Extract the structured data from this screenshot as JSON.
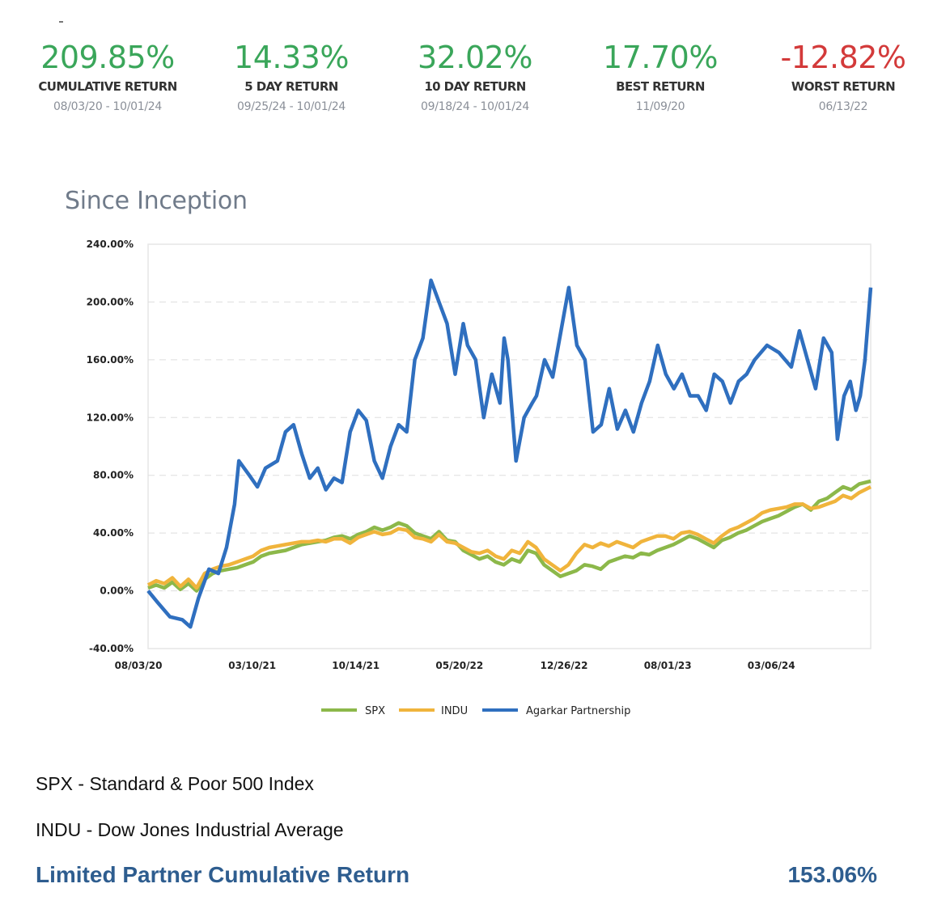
{
  "stats": [
    {
      "value": "209.85%",
      "label": "CUMULATIVE RETURN",
      "date": "08/03/20 - 10/01/24",
      "tone": "pos"
    },
    {
      "value": "14.33%",
      "label": "5 DAY RETURN",
      "date": "09/25/24 - 10/01/24",
      "tone": "pos"
    },
    {
      "value": "32.02%",
      "label": "10 DAY RETURN",
      "date": "09/18/24 - 10/01/24",
      "tone": "pos"
    },
    {
      "value": "17.70%",
      "label": "BEST RETURN",
      "date": "11/09/20",
      "tone": "pos"
    },
    {
      "value": "-12.82%",
      "label": "WORST RETURN",
      "date": "06/13/22",
      "tone": "neg"
    }
  ],
  "colors": {
    "positive": "#3aa65a",
    "negative": "#d33a3a",
    "spx": "#8cb84a",
    "indu": "#f0b43c",
    "agarkar": "#2f6fbf",
    "lp": "#2e5d8f"
  },
  "section_title": "Since Inception",
  "chart_data": {
    "type": "line",
    "title": "Since Inception",
    "xlabel": "",
    "ylabel": "",
    "x_unit": "days since 08/03/20",
    "xlim": [
      0,
      1520
    ],
    "ylim": [
      -40,
      240
    ],
    "yticks": [
      -40,
      0,
      40,
      80,
      120,
      160,
      200,
      240
    ],
    "ytick_labels": [
      "-40.00%",
      "0.00%",
      "40.00%",
      "80.00%",
      "120.00%",
      "160.00%",
      "200.00%",
      "240.00%"
    ],
    "xticks": [
      0,
      219,
      437,
      655,
      875,
      1093,
      1311
    ],
    "xtick_labels": [
      "08/03/20",
      "03/10/21",
      "10/14/21",
      "05/20/22",
      "12/26/22",
      "08/01/23",
      "03/06/24"
    ],
    "grid": true,
    "legend_position": "bottom",
    "series": [
      {
        "name": "SPX",
        "color": "#8cb84a",
        "x": [
          0,
          17,
          34,
          51,
          68,
          85,
          102,
          119,
          136,
          153,
          170,
          187,
          204,
          221,
          238,
          255,
          272,
          289,
          306,
          323,
          340,
          357,
          374,
          391,
          408,
          425,
          442,
          459,
          476,
          493,
          510,
          527,
          544,
          561,
          578,
          595,
          612,
          629,
          646,
          663,
          680,
          697,
          714,
          731,
          748,
          765,
          782,
          799,
          816,
          833,
          850,
          867,
          884,
          901,
          918,
          935,
          952,
          969,
          986,
          1003,
          1020,
          1037,
          1054,
          1071,
          1088,
          1105,
          1122,
          1139,
          1156,
          1173,
          1190,
          1207,
          1224,
          1241,
          1258,
          1275,
          1292,
          1309,
          1326,
          1343,
          1360,
          1377,
          1394,
          1411,
          1428,
          1445,
          1462,
          1479,
          1496,
          1520
        ],
        "values": [
          2,
          4,
          2,
          6,
          1,
          5,
          0,
          8,
          12,
          14,
          15,
          16,
          18,
          20,
          24,
          26,
          27,
          28,
          30,
          32,
          33,
          34,
          35,
          37,
          38,
          36,
          39,
          41,
          44,
          42,
          44,
          47,
          45,
          40,
          38,
          36,
          41,
          35,
          34,
          28,
          25,
          22,
          24,
          20,
          18,
          22,
          20,
          28,
          26,
          18,
          14,
          10,
          12,
          14,
          18,
          17,
          15,
          20,
          22,
          24,
          23,
          26,
          25,
          28,
          30,
          32,
          35,
          38,
          36,
          33,
          30,
          35,
          37,
          40,
          42,
          45,
          48,
          50,
          52,
          55,
          58,
          60,
          56,
          62,
          64,
          68,
          72,
          70,
          74,
          76
        ]
      },
      {
        "name": "INDU",
        "color": "#f0b43c",
        "x": [
          0,
          17,
          34,
          51,
          68,
          85,
          102,
          119,
          136,
          153,
          170,
          187,
          204,
          221,
          238,
          255,
          272,
          289,
          306,
          323,
          340,
          357,
          374,
          391,
          408,
          425,
          442,
          459,
          476,
          493,
          510,
          527,
          544,
          561,
          578,
          595,
          612,
          629,
          646,
          663,
          680,
          697,
          714,
          731,
          748,
          765,
          782,
          799,
          816,
          833,
          850,
          867,
          884,
          901,
          918,
          935,
          952,
          969,
          986,
          1003,
          1020,
          1037,
          1054,
          1071,
          1088,
          1105,
          1122,
          1139,
          1156,
          1173,
          1190,
          1207,
          1224,
          1241,
          1258,
          1275,
          1292,
          1309,
          1326,
          1343,
          1360,
          1377,
          1394,
          1411,
          1428,
          1445,
          1462,
          1479,
          1496,
          1520
        ],
        "values": [
          4,
          7,
          5,
          9,
          3,
          8,
          2,
          12,
          15,
          17,
          18,
          20,
          22,
          24,
          28,
          30,
          31,
          32,
          33,
          34,
          34,
          35,
          34,
          36,
          36,
          33,
          37,
          39,
          41,
          39,
          40,
          43,
          42,
          37,
          36,
          34,
          39,
          34,
          33,
          30,
          27,
          26,
          28,
          24,
          22,
          28,
          26,
          34,
          30,
          22,
          18,
          14,
          18,
          26,
          32,
          30,
          33,
          31,
          34,
          32,
          30,
          34,
          36,
          38,
          38,
          36,
          40,
          41,
          39,
          36,
          33,
          38,
          42,
          44,
          47,
          50,
          54,
          56,
          57,
          58,
          60,
          60,
          57,
          58,
          60,
          62,
          66,
          64,
          68,
          72
        ]
      },
      {
        "name": "Agarkar Partnership",
        "color": "#2f6fbf",
        "x": [
          0,
          20,
          46,
          72,
          89,
          106,
          128,
          148,
          165,
          182,
          191,
          213,
          230,
          247,
          272,
          289,
          306,
          323,
          340,
          357,
          374,
          391,
          408,
          425,
          442,
          459,
          476,
          493,
          510,
          527,
          544,
          561,
          578,
          595,
          612,
          629,
          646,
          663,
          672,
          689,
          706,
          723,
          740,
          749,
          757,
          774,
          791,
          808,
          817,
          834,
          851,
          885,
          902,
          919,
          936,
          953,
          970,
          987,
          1004,
          1021,
          1038,
          1055,
          1072,
          1089,
          1106,
          1123,
          1140,
          1157,
          1174,
          1191,
          1208,
          1225,
          1242,
          1259,
          1276,
          1302,
          1327,
          1353,
          1370,
          1387,
          1404,
          1421,
          1438,
          1450,
          1464,
          1477,
          1489,
          1498,
          1508,
          1520
        ],
        "values": [
          0,
          -8,
          -18,
          -20,
          -25,
          -5,
          15,
          12,
          30,
          60,
          90,
          80,
          72,
          85,
          90,
          110,
          115,
          95,
          78,
          85,
          70,
          78,
          75,
          110,
          125,
          118,
          90,
          78,
          100,
          115,
          110,
          160,
          175,
          215,
          200,
          185,
          150,
          185,
          170,
          160,
          120,
          150,
          130,
          175,
          160,
          90,
          120,
          130,
          135,
          160,
          148,
          210,
          170,
          160,
          110,
          115,
          140,
          112,
          125,
          110,
          130,
          145,
          170,
          150,
          140,
          150,
          135,
          135,
          125,
          150,
          145,
          130,
          145,
          150,
          160,
          170,
          165,
          155,
          180,
          160,
          140,
          175,
          165,
          105,
          135,
          145,
          125,
          135,
          160,
          210
        ]
      }
    ]
  },
  "footnotes": {
    "spx": "SPX - Standard & Poor 500 Index",
    "indu": "INDU - Dow Jones Industrial Average"
  },
  "limited_partner": {
    "label": "Limited Partner Cumulative Return",
    "value": "153.06%"
  }
}
